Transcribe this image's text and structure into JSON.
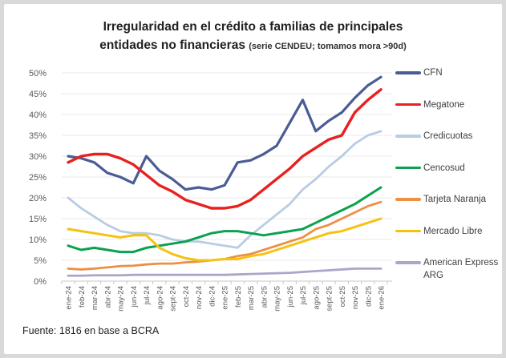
{
  "title": {
    "line1": "Irregularidad en el crédito a familias de principales",
    "line2": "entidades no financieras",
    "subtitle": "(serie CENDEU; tomamos mora >90d)"
  },
  "footer": {
    "source": "Fuente: 1816 en base a BCRA"
  },
  "chart_data": {
    "type": "line",
    "title": "Irregularidad en el crédito a familias de principales entidades no financieras (serie CENDEU; tomamos mora >90d)",
    "xlabel": "",
    "ylabel": "",
    "ylim": [
      0,
      50
    ],
    "y_tick_step": 5,
    "y_ticks": [
      "0%",
      "5%",
      "10%",
      "15%",
      "20%",
      "25%",
      "30%",
      "35%",
      "40%",
      "45%",
      "50%"
    ],
    "grid": true,
    "legend_position": "right",
    "categories": [
      "ene-24",
      "feb-24",
      "mar-24",
      "abr-24",
      "may-24",
      "jun-24",
      "jul-24",
      "ago-24",
      "sept-24",
      "oct-24",
      "nov-24",
      "dic-24",
      "ene-25",
      "feb-25",
      "mar-25",
      "abr-25",
      "may-25",
      "jun-25",
      "jul-25",
      "ago-25",
      "sept-25",
      "oct-25",
      "nov-25",
      "dic-25",
      "ene-26"
    ],
    "series": [
      {
        "name": "CFN",
        "color": "#4A5C94",
        "stroke_width": 3.2,
        "values": [
          30,
          29.5,
          28.5,
          26,
          25,
          23.5,
          30,
          26.5,
          24.5,
          22,
          22.5,
          22,
          23,
          28.5,
          29,
          30.5,
          32.5,
          38,
          43.5,
          36,
          38.5,
          40.5,
          44,
          47,
          49
        ]
      },
      {
        "name": "Megatone",
        "color": "#E8201E",
        "stroke_width": 3.4,
        "values": [
          28.5,
          30,
          30.5,
          30.5,
          29.5,
          28,
          25.5,
          23,
          21.5,
          19.5,
          18.5,
          17.5,
          17.5,
          18,
          19.5,
          22,
          24.5,
          27,
          30,
          32,
          34,
          35,
          40.5,
          43.5,
          46
        ]
      },
      {
        "name": "Credicuotas",
        "color": "#B8CCE4",
        "stroke_width": 2.8,
        "values": [
          20,
          17.5,
          15.5,
          13.5,
          12,
          11.5,
          11.5,
          11,
          10,
          9.5,
          9.5,
          9,
          8.5,
          8,
          11,
          13.5,
          16,
          18.5,
          22,
          24.5,
          27.5,
          30,
          33,
          35,
          36
        ]
      },
      {
        "name": "Cencosud",
        "color": "#0AA14F",
        "stroke_width": 3,
        "values": [
          8.5,
          7.5,
          8,
          7.5,
          7,
          7,
          8,
          8.5,
          9,
          9.5,
          10.5,
          11.5,
          12,
          12,
          11.5,
          11,
          11.5,
          12,
          12.5,
          14,
          15.5,
          17,
          18.5,
          20.5,
          22.5
        ]
      },
      {
        "name": "Tarjeta Naranja",
        "color": "#EC9045",
        "stroke_width": 2.8,
        "values": [
          3,
          2.8,
          3,
          3.3,
          3.6,
          3.7,
          4,
          4.2,
          4.2,
          4.5,
          4.7,
          5,
          5.3,
          6,
          6.5,
          7.5,
          8.5,
          9.5,
          10.5,
          12.5,
          13.5,
          15,
          16.5,
          18,
          19
        ]
      },
      {
        "name": "Mercado Libre",
        "color": "#F5C211",
        "stroke_width": 3,
        "values": [
          12.5,
          12,
          11.5,
          11,
          10.5,
          11,
          11,
          8,
          6.5,
          5.5,
          5,
          5,
          5.3,
          5.3,
          6,
          6.5,
          7.5,
          8.5,
          9.5,
          10.5,
          11.5,
          12,
          13,
          14,
          15
        ]
      },
      {
        "name": "American Express ARG",
        "color": "#A9A6CB",
        "stroke_width": 2.8,
        "values": [
          1.3,
          1.3,
          1.4,
          1.4,
          1.4,
          1.5,
          1.5,
          1.5,
          1.5,
          1.5,
          1.5,
          1.5,
          1.5,
          1.6,
          1.7,
          1.8,
          1.9,
          2,
          2.2,
          2.4,
          2.6,
          2.8,
          3,
          3,
          3
        ]
      }
    ],
    "axis_colors": {
      "grid": "#e9e9e9",
      "axis_line": "#c9c9c9",
      "tick_label": "#595959"
    }
  }
}
